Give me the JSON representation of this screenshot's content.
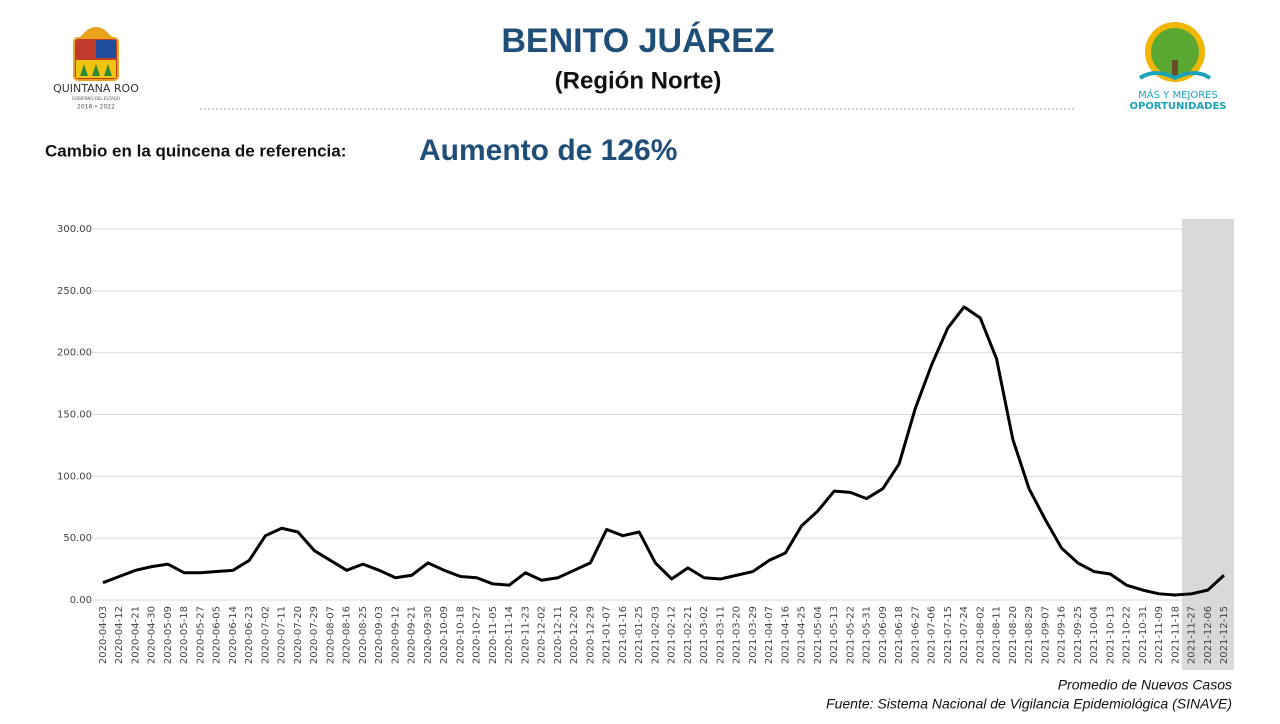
{
  "header": {
    "title": "BENITO JUÁREZ",
    "subtitle": "(Región Norte)",
    "logo_left": {
      "name": "QUINTANA ROO",
      "tagline": "GOBIERNO DEL ESTADO",
      "years": "2016 • 2022"
    },
    "logo_right": {
      "line1": "MÁS Y MEJORES",
      "line2": "OPORTUNIDADES"
    }
  },
  "summary": {
    "label": "Cambio en la quincena de referencia:",
    "value": "Aumento de 126%"
  },
  "chart_data": {
    "type": "line",
    "x": [
      "2020-04-03",
      "2020-04-12",
      "2020-04-21",
      "2020-04-30",
      "2020-05-09",
      "2020-05-18",
      "2020-05-27",
      "2020-06-05",
      "2020-06-14",
      "2020-06-23",
      "2020-07-02",
      "2020-07-11",
      "2020-07-20",
      "2020-07-29",
      "2020-08-07",
      "2020-08-16",
      "2020-08-25",
      "2020-09-03",
      "2020-09-12",
      "2020-09-21",
      "2020-09-30",
      "2020-10-09",
      "2020-10-18",
      "2020-10-27",
      "2020-11-05",
      "2020-11-14",
      "2020-11-23",
      "2020-12-02",
      "2020-12-11",
      "2020-12-20",
      "2020-12-29",
      "2021-01-07",
      "2021-01-16",
      "2021-01-25",
      "2021-02-03",
      "2021-02-12",
      "2021-02-21",
      "2021-03-02",
      "2021-03-11",
      "2021-03-20",
      "2021-03-29",
      "2021-04-07",
      "2021-04-16",
      "2021-04-25",
      "2021-05-04",
      "2021-05-13",
      "2021-05-22",
      "2021-05-31",
      "2021-06-09",
      "2021-06-18",
      "2021-06-27",
      "2021-07-06",
      "2021-07-15",
      "2021-07-24",
      "2021-08-02",
      "2021-08-11",
      "2021-08-20",
      "2021-08-29",
      "2021-09-07",
      "2021-09-16",
      "2021-09-25",
      "2021-10-04",
      "2021-10-13",
      "2021-10-22",
      "2021-10-31",
      "2021-11-09",
      "2021-11-18",
      "2021-11-27",
      "2021-12-06",
      "2021-12-15"
    ],
    "series": [
      {
        "name": "Promedio de Nuevos Casos",
        "color": "#000000",
        "values": [
          14,
          19,
          24,
          27,
          29,
          22,
          22,
          23,
          24,
          32,
          52,
          58,
          55,
          40,
          32,
          24,
          29,
          24,
          18,
          20,
          30,
          24,
          19,
          18,
          13,
          12,
          22,
          16,
          18,
          24,
          30,
          57,
          52,
          55,
          30,
          17,
          26,
          18,
          17,
          20,
          23,
          32,
          38,
          60,
          72,
          88,
          87,
          82,
          90,
          110,
          155,
          190,
          220,
          237,
          228,
          195,
          130,
          90,
          65,
          42,
          30,
          23,
          21,
          12,
          8,
          5,
          4,
          5,
          8,
          20
        ]
      }
    ],
    "ylim": [
      0,
      300
    ],
    "yticks": [
      {
        "value": 0,
        "label": "0.00"
      },
      {
        "value": 50,
        "label": "50.00"
      },
      {
        "value": 100,
        "label": "100.00"
      },
      {
        "value": 150,
        "label": "150.00"
      },
      {
        "value": 200,
        "label": "200.00"
      },
      {
        "value": 250,
        "label": "250.00"
      },
      {
        "value": 300,
        "label": "300.00"
      }
    ],
    "grid": true,
    "source": "Fuente: Sistema Nacional de Vigilancia Epidemiológica (SINAVE)"
  }
}
